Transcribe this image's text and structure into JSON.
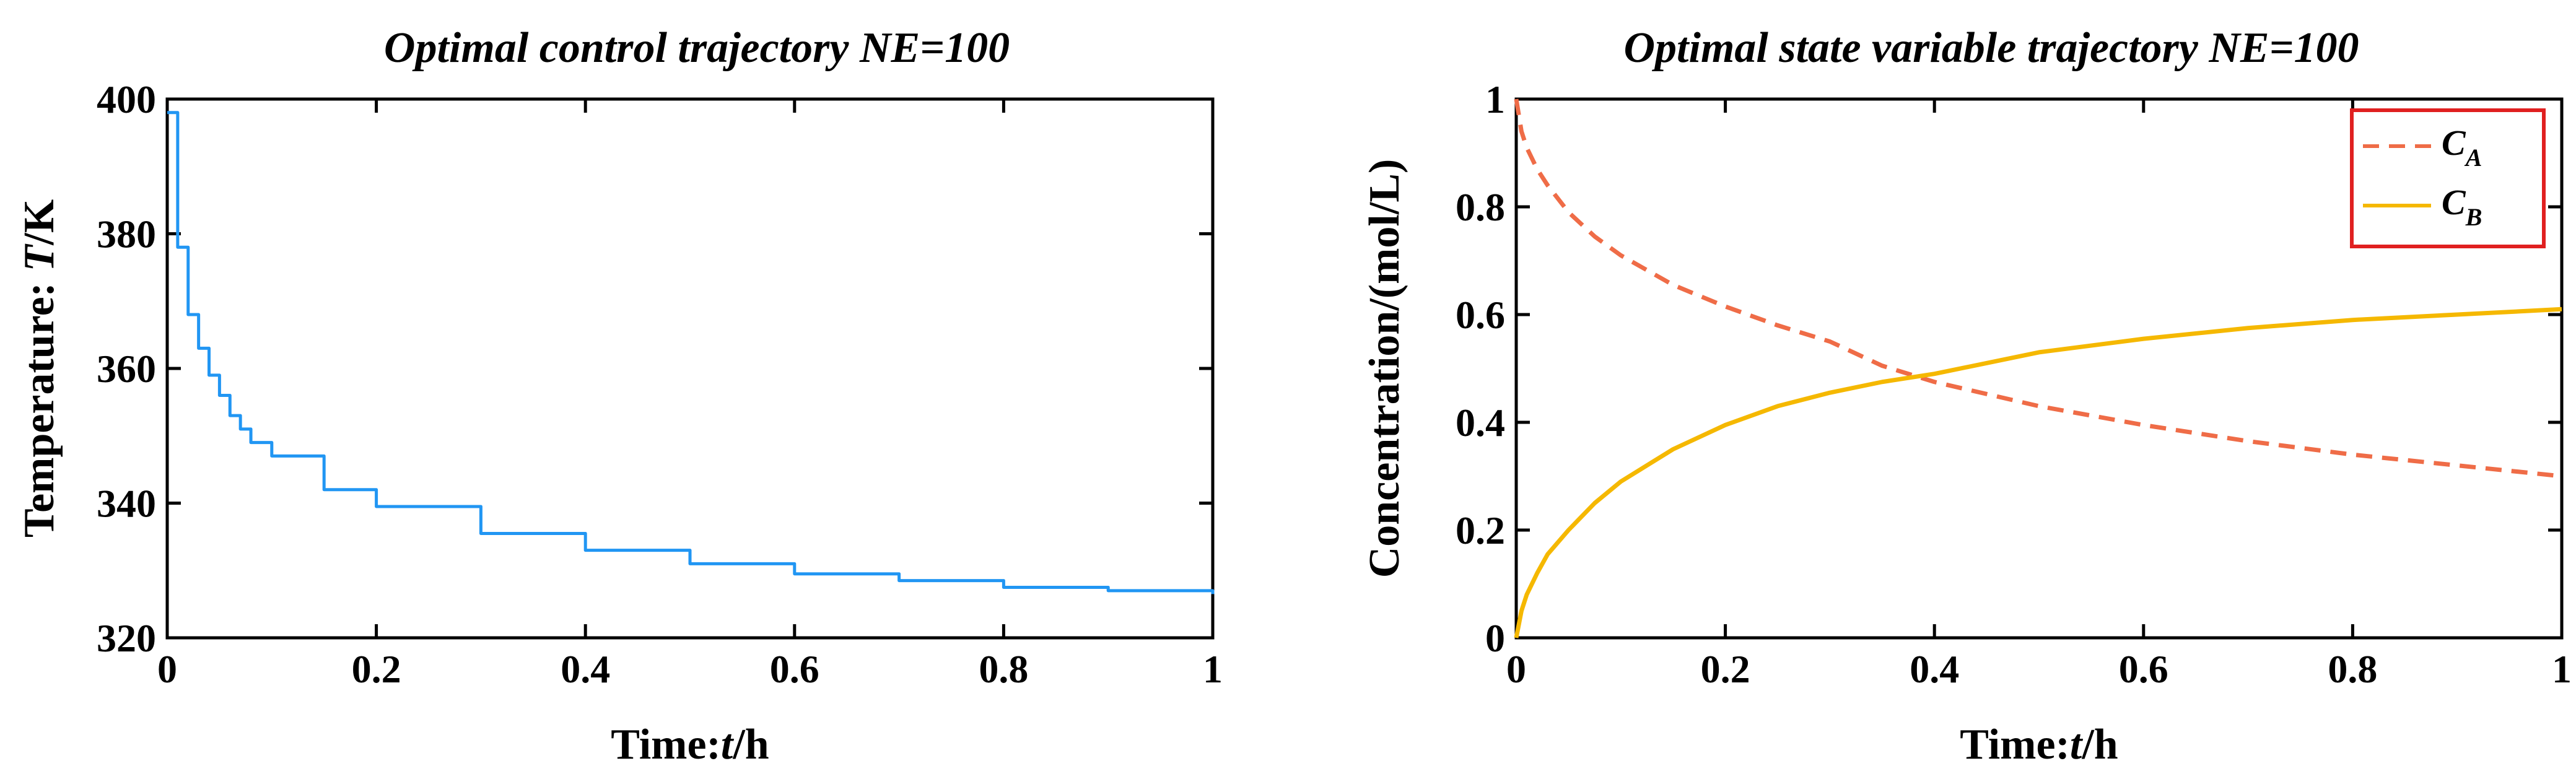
{
  "chart_data": [
    {
      "type": "line",
      "title": "Optimal control trajectory NE=100",
      "xlabel": {
        "prefix": "Time:",
        "var": "t",
        "unit": "/h"
      },
      "ylabel": {
        "prefix": "Temperature: ",
        "var": "T",
        "unit": "/K"
      },
      "xlim": [
        0,
        1
      ],
      "ylim": [
        320,
        400
      ],
      "xticks": [
        0,
        0.2,
        0.4,
        0.6,
        0.8,
        1
      ],
      "xtick_labels": [
        "0",
        "0.2",
        "0.4",
        "0.6",
        "0.8",
        "1"
      ],
      "yticks": [
        320,
        340,
        360,
        380,
        400
      ],
      "ytick_labels": [
        "320",
        "340",
        "360",
        "380",
        "400"
      ],
      "grid": false,
      "series": [
        {
          "name": "T",
          "color": "#2196F3",
          "style": "step",
          "x": [
            0,
            0.01,
            0.02,
            0.03,
            0.04,
            0.05,
            0.06,
            0.07,
            0.08,
            0.1,
            0.15,
            0.2,
            0.3,
            0.4,
            0.5,
            0.6,
            0.7,
            0.8,
            0.9,
            1.0
          ],
          "y": [
            398,
            378,
            368,
            363,
            359,
            356,
            353,
            351,
            349,
            347,
            342,
            339.5,
            335.5,
            333,
            331,
            329.5,
            328.5,
            327.5,
            327,
            326.5
          ]
        }
      ]
    },
    {
      "type": "line",
      "title": "Optimal state variable trajectory NE=100",
      "xlabel": {
        "prefix": "Time:",
        "var": "t",
        "unit": "/h"
      },
      "ylabel": {
        "text": "Concentration/(mol/L)"
      },
      "xlim": [
        0,
        1
      ],
      "ylim": [
        0,
        1
      ],
      "xticks": [
        0,
        0.2,
        0.4,
        0.6,
        0.8,
        1
      ],
      "xtick_labels": [
        "0",
        "0.2",
        "0.4",
        "0.6",
        "0.8",
        "1"
      ],
      "yticks": [
        0,
        0.2,
        0.4,
        0.6,
        0.8,
        1
      ],
      "ytick_labels": [
        "0",
        "0.2",
        "0.4",
        "0.6",
        "0.8",
        "1"
      ],
      "grid": false,
      "legend_position": "top-right",
      "legend_border_color": "#E02020",
      "series": [
        {
          "name": "C",
          "subscript": "A",
          "color": "#EF6C47",
          "style": "dashed",
          "x": [
            0,
            0.005,
            0.01,
            0.02,
            0.03,
            0.05,
            0.075,
            0.1,
            0.15,
            0.2,
            0.25,
            0.3,
            0.35,
            0.4,
            0.5,
            0.6,
            0.7,
            0.8,
            0.9,
            1.0
          ],
          "y": [
            1.0,
            0.94,
            0.91,
            0.87,
            0.84,
            0.79,
            0.745,
            0.71,
            0.655,
            0.615,
            0.58,
            0.55,
            0.505,
            0.475,
            0.43,
            0.395,
            0.365,
            0.34,
            0.32,
            0.3
          ]
        },
        {
          "name": "C",
          "subscript": "B",
          "color": "#F5B800",
          "style": "solid",
          "x": [
            0,
            0.005,
            0.01,
            0.02,
            0.03,
            0.05,
            0.075,
            0.1,
            0.15,
            0.2,
            0.25,
            0.3,
            0.35,
            0.4,
            0.5,
            0.6,
            0.7,
            0.8,
            0.9,
            1.0
          ],
          "y": [
            0.0,
            0.05,
            0.08,
            0.12,
            0.155,
            0.2,
            0.25,
            0.29,
            0.35,
            0.395,
            0.43,
            0.455,
            0.475,
            0.49,
            0.53,
            0.555,
            0.575,
            0.59,
            0.6,
            0.61
          ]
        }
      ]
    }
  ]
}
